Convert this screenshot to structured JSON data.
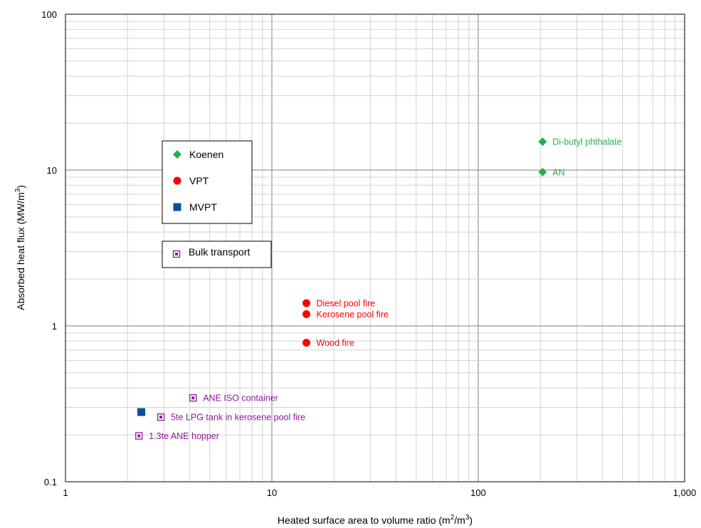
{
  "chart_data": {
    "type": "scatter",
    "x_scale": "log",
    "y_scale": "log",
    "xlim": [
      1,
      1000
    ],
    "ylim": [
      0.1,
      100
    ],
    "grid": true,
    "x_ticks": [
      {
        "value": 1,
        "label": "1"
      },
      {
        "value": 10,
        "label": "10"
      },
      {
        "value": 100,
        "label": "100"
      },
      {
        "value": 1000,
        "label": "1,000"
      }
    ],
    "y_ticks": [
      {
        "value": 0.1,
        "label": "0.1"
      },
      {
        "value": 1,
        "label": "1"
      },
      {
        "value": 10,
        "label": "10"
      },
      {
        "value": 100,
        "label": "100"
      }
    ],
    "xlabel": {
      "main": "Heated surface area to volume ratio  (m",
      "sup1": "2",
      "mid": "/m",
      "sup2": "3",
      "end": ")"
    },
    "ylabel": {
      "main": "Absorbed heat flux  (MW/m",
      "sup": "3",
      "end": ")"
    },
    "series": [
      {
        "name": "Koenen",
        "marker": "diamond",
        "color": "#22b14c",
        "points": [
          {
            "x": 205,
            "y": 15.2,
            "label": "Di-butyl phthalate"
          },
          {
            "x": 205,
            "y": 9.7,
            "label": "AN"
          }
        ]
      },
      {
        "name": "VPT",
        "marker": "circle",
        "color": "#ff0000",
        "points": [
          {
            "x": 14.7,
            "y": 1.4,
            "label": "Diesel pool fire"
          },
          {
            "x": 14.7,
            "y": 1.19,
            "label": "Kerosene pool fire"
          },
          {
            "x": 14.7,
            "y": 0.78,
            "label": "Wood fire"
          }
        ]
      },
      {
        "name": "MVPT",
        "marker": "square",
        "color": "#0b4f9e",
        "points": [
          {
            "x": 2.33,
            "y": 0.28,
            "label": ""
          }
        ]
      },
      {
        "name": "Bulk transport",
        "marker": "open-square",
        "color": "#8b1a96",
        "points": [
          {
            "x": 4.15,
            "y": 0.345,
            "label": "ANE ISO container"
          },
          {
            "x": 2.9,
            "y": 0.26,
            "label": "5te LPG tank in kerosene pool fire"
          },
          {
            "x": 2.27,
            "y": 0.197,
            "label": "1.3te ANE hopper"
          }
        ]
      }
    ],
    "legend": {
      "placement": "upper-left",
      "group1": [
        "Koenen",
        "VPT",
        "MVPT"
      ],
      "group2": [
        "Bulk transport"
      ]
    }
  }
}
